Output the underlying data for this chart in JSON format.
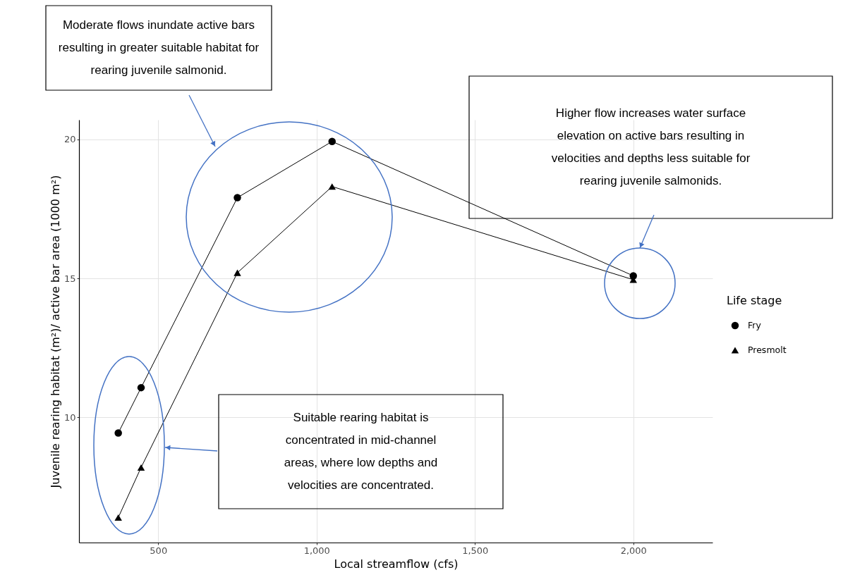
{
  "chart_data": {
    "type": "line",
    "xlabel": "Local streamflow (cfs)",
    "ylabel": "Juvenile rearing habitat (m²)/ active bar area (1000 m²)",
    "legend_title": "Life stage",
    "x": [
      374,
      446,
      750,
      1049,
      2000
    ],
    "series": [
      {
        "name": "Fry",
        "color": "#000000",
        "marker": "circle",
        "values": [
          9.44,
          11.07,
          17.9,
          19.92,
          15.09
        ]
      },
      {
        "name": "Presmolt",
        "color": "#000000",
        "marker": "triangle",
        "values": [
          6.4,
          8.2,
          15.2,
          18.3,
          14.95
        ]
      }
    ],
    "xlim": [
      250,
      2250
    ],
    "ylim": [
      5.5,
      20.7
    ],
    "xticks": [
      500,
      {
        "value": 1000,
        "label": "1,000"
      },
      {
        "value": 1500,
        "label": "1,500"
      },
      {
        "value": 2000,
        "label": "2,000"
      }
    ],
    "yticks": [
      10,
      15,
      20
    ],
    "grid": true,
    "legend": "right",
    "line_style": "solid",
    "annotations": [
      "Moderate flows inundate active bars\nresulting in greater suitable habitat for\nrearing juvenile salmonid.",
      "Higher flow increases water surface\nelevation on active bars resulting in\nvelocities and depths less suitable for\nrearing juvenile salmonids.",
      "Suitable rearing habitat is\nconcentrated in mid-channel\nareas, where low depths and\nvelocities are concentrated."
    ]
  }
}
